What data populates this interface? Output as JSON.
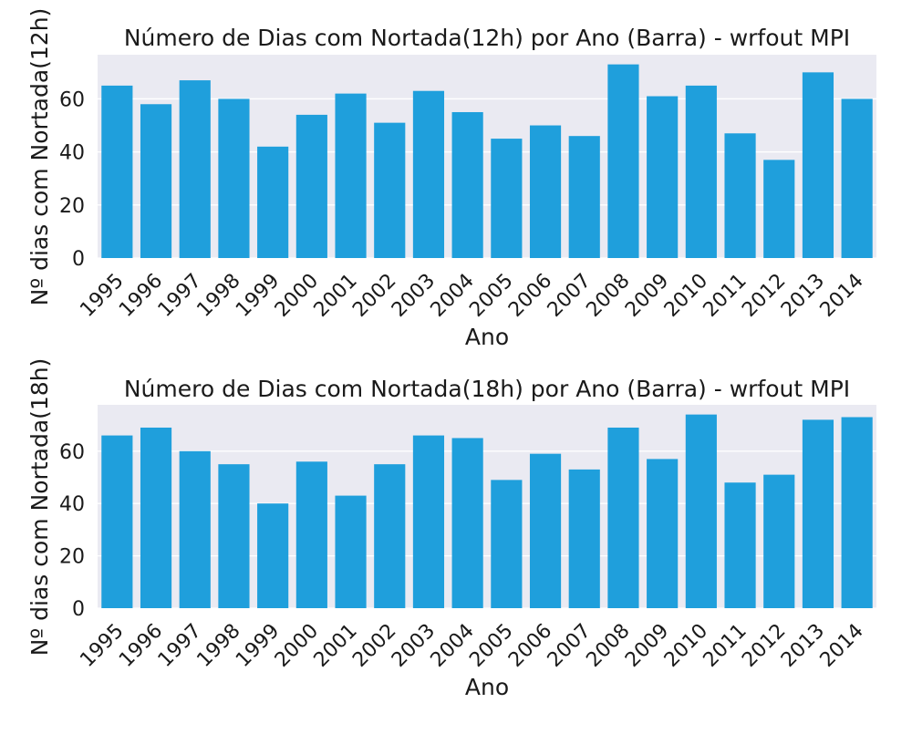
{
  "colors": {
    "bar": "#1f9fdc",
    "plot_background": "#eaeaf2",
    "grid": "#ffffff"
  },
  "chart_data": [
    {
      "type": "bar",
      "title": "Número de Dias com Nortada(12h) por Ano (Barra) - wrfout MPI",
      "xlabel": "Ano",
      "ylabel": "Nº dias com Nortada(12h)",
      "categories": [
        "1995",
        "1996",
        "1997",
        "1998",
        "1999",
        "2000",
        "2001",
        "2002",
        "2003",
        "2004",
        "2005",
        "2006",
        "2007",
        "2008",
        "2009",
        "2010",
        "2011",
        "2012",
        "2013",
        "2014"
      ],
      "values": [
        65,
        58,
        67,
        60,
        42,
        54,
        62,
        51,
        63,
        55,
        45,
        50,
        46,
        73,
        61,
        65,
        47,
        37,
        70,
        60
      ],
      "ylim": [
        0,
        76.65
      ],
      "yticks": [
        0,
        20,
        40,
        60
      ],
      "grid": true,
      "legend": false
    },
    {
      "type": "bar",
      "title": "Número de Dias com Nortada(18h) por Ano (Barra) - wrfout MPI",
      "xlabel": "Ano",
      "ylabel": "Nº dias com Nortada(18h)",
      "categories": [
        "1995",
        "1996",
        "1997",
        "1998",
        "1999",
        "2000",
        "2001",
        "2002",
        "2003",
        "2004",
        "2005",
        "2006",
        "2007",
        "2008",
        "2009",
        "2010",
        "2011",
        "2012",
        "2013",
        "2014"
      ],
      "values": [
        66,
        69,
        60,
        55,
        40,
        56,
        43,
        55,
        66,
        65,
        49,
        59,
        53,
        69,
        57,
        74,
        48,
        51,
        72,
        73
      ],
      "ylim": [
        0,
        77.7
      ],
      "yticks": [
        0,
        20,
        40,
        60
      ],
      "grid": true,
      "legend": false
    }
  ]
}
